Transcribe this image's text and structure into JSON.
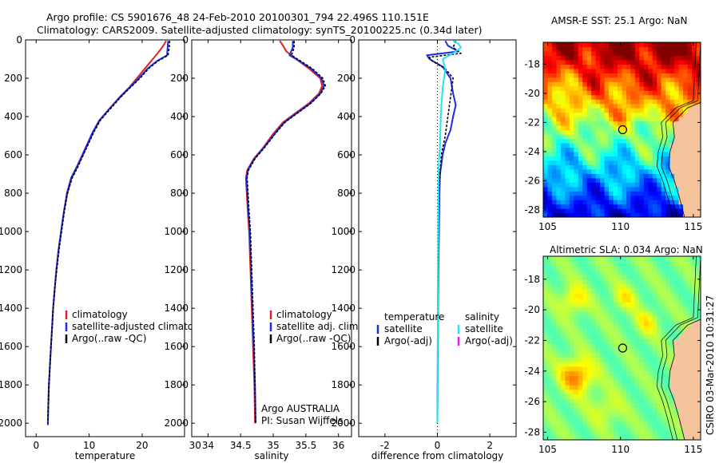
{
  "header": {
    "line1": "Argo profile: CS 5901676_48 24-Feb-2010 20100301_794 22.496S 110.151E",
    "line2": "Climatology: CARS2009. Satellite-adjusted climatology: synTS_20100225.nc (0.34d later)"
  },
  "stamp": "CSIRO 03-Mar-2010 10:31:27",
  "colors": {
    "climatology": "#e02020",
    "satellite": "#1a2ee0",
    "argo": "#000000",
    "salinity_satellite": "#20e8f0",
    "salinity_argo_adj": "#e020e0"
  },
  "chart_data": [
    {
      "type": "line",
      "panel": "temperature",
      "xlabel": "temperature",
      "xlim": [
        -2,
        28
      ],
      "xticks": [
        0,
        10,
        20,
        30
      ],
      "ylim": [
        2070,
        0
      ],
      "yticks": [
        0,
        200,
        400,
        600,
        800,
        1000,
        1200,
        1400,
        1600,
        1800,
        2000
      ],
      "legend": [
        "climatology",
        "satellite-adjusted climatology",
        "Argo(..raw -QC)"
      ],
      "series": [
        {
          "name": "climatology",
          "color": "#e02020",
          "points": [
            [
              24.5,
              5
            ],
            [
              24.0,
              30
            ],
            [
              23.2,
              60
            ],
            [
              22.0,
              100
            ],
            [
              20.5,
              150
            ],
            [
              19.0,
              200
            ],
            [
              17.5,
              250
            ],
            [
              15.7,
              300
            ],
            [
              13.8,
              360
            ],
            [
              12.0,
              420
            ],
            [
              10.8,
              480
            ],
            [
              9.8,
              540
            ],
            [
              8.8,
              600
            ],
            [
              7.8,
              660
            ],
            [
              6.7,
              720
            ],
            [
              5.9,
              800
            ],
            [
              5.2,
              900
            ],
            [
              4.7,
              1000
            ],
            [
              4.2,
              1100
            ],
            [
              3.8,
              1200
            ],
            [
              3.5,
              1300
            ],
            [
              3.2,
              1400
            ],
            [
              3.0,
              1500
            ],
            [
              2.8,
              1600
            ],
            [
              2.6,
              1700
            ],
            [
              2.4,
              1800
            ],
            [
              2.3,
              1900
            ],
            [
              2.2,
              2000
            ]
          ]
        },
        {
          "name": "satellite-adjusted climatology",
          "color": "#1a2ee0",
          "points": [
            [
              24.9,
              5
            ],
            [
              24.8,
              40
            ],
            [
              24.7,
              80
            ],
            [
              22.8,
              110
            ],
            [
              21.0,
              150
            ],
            [
              19.4,
              200
            ],
            [
              17.6,
              250
            ],
            [
              15.8,
              300
            ],
            [
              13.8,
              360
            ],
            [
              11.9,
              420
            ],
            [
              10.7,
              480
            ],
            [
              9.7,
              540
            ],
            [
              8.7,
              600
            ],
            [
              7.7,
              660
            ],
            [
              6.6,
              720
            ],
            [
              5.8,
              800
            ],
            [
              5.2,
              900
            ],
            [
              4.7,
              1000
            ],
            [
              4.2,
              1100
            ],
            [
              3.8,
              1200
            ],
            [
              3.5,
              1300
            ],
            [
              3.2,
              1400
            ],
            [
              3.0,
              1500
            ],
            [
              2.8,
              1600
            ],
            [
              2.6,
              1700
            ],
            [
              2.4,
              1800
            ],
            [
              2.3,
              1900
            ],
            [
              2.2,
              2010
            ]
          ]
        },
        {
          "name": "Argo(..raw -QC)",
          "color": "#000000",
          "dashed": true,
          "points": [
            [
              25.2,
              5
            ],
            [
              25.1,
              40
            ],
            [
              24.9,
              80
            ],
            [
              23.0,
              110
            ],
            [
              21.2,
              150
            ],
            [
              19.6,
              200
            ],
            [
              17.7,
              250
            ],
            [
              15.9,
              300
            ],
            [
              14.0,
              360
            ],
            [
              12.1,
              420
            ],
            [
              10.9,
              480
            ],
            [
              9.9,
              540
            ],
            [
              8.9,
              600
            ],
            [
              7.9,
              660
            ],
            [
              6.8,
              720
            ],
            [
              5.9,
              800
            ],
            [
              5.3,
              900
            ],
            [
              4.8,
              1000
            ],
            [
              4.3,
              1100
            ],
            [
              3.9,
              1200
            ],
            [
              3.5,
              1300
            ],
            [
              3.2,
              1400
            ],
            [
              3.0,
              1500
            ],
            [
              2.8,
              1600
            ],
            [
              2.6,
              1700
            ],
            [
              2.4,
              1800
            ],
            [
              2.3,
              1900
            ],
            [
              2.2,
              2000
            ]
          ]
        }
      ]
    },
    {
      "type": "line",
      "panel": "salinity",
      "xlabel": "salinity",
      "xlim": [
        33.75,
        36.2
      ],
      "xticks": [
        34,
        34.5,
        35,
        35.5,
        36
      ],
      "ylim": [
        2070,
        0
      ],
      "yticks": [
        0,
        200,
        400,
        600,
        800,
        1000,
        1200,
        1400,
        1600,
        1800,
        2000
      ],
      "legend": [
        "climatology",
        "satellite adj. clim.",
        "Argo(..raw -QC)"
      ],
      "annotation": [
        "Argo AUSTRALIA",
        "PI: Susan Wijffels"
      ],
      "series": [
        {
          "name": "climatology",
          "color": "#e02020",
          "points": [
            [
              35.1,
              5
            ],
            [
              35.15,
              30
            ],
            [
              35.2,
              60
            ],
            [
              35.35,
              100
            ],
            [
              35.55,
              150
            ],
            [
              35.72,
              200
            ],
            [
              35.75,
              240
            ],
            [
              35.7,
              280
            ],
            [
              35.55,
              330
            ],
            [
              35.35,
              380
            ],
            [
              35.15,
              430
            ],
            [
              35.0,
              490
            ],
            [
              34.85,
              560
            ],
            [
              34.7,
              620
            ],
            [
              34.6,
              680
            ],
            [
              34.58,
              720
            ],
            [
              34.59,
              780
            ],
            [
              34.61,
              900
            ],
            [
              34.63,
              1000
            ],
            [
              34.65,
              1200
            ],
            [
              34.67,
              1400
            ],
            [
              34.69,
              1600
            ],
            [
              34.71,
              1800
            ],
            [
              34.72,
              2000
            ]
          ]
        },
        {
          "name": "satellite adj. clim.",
          "color": "#1a2ee0",
          "points": [
            [
              35.3,
              5
            ],
            [
              35.3,
              40
            ],
            [
              35.25,
              80
            ],
            [
              35.4,
              110
            ],
            [
              35.58,
              150
            ],
            [
              35.74,
              200
            ],
            [
              35.78,
              240
            ],
            [
              35.72,
              280
            ],
            [
              35.57,
              330
            ],
            [
              35.37,
              380
            ],
            [
              35.17,
              430
            ],
            [
              35.02,
              490
            ],
            [
              34.86,
              560
            ],
            [
              34.71,
              620
            ],
            [
              34.61,
              680
            ],
            [
              34.59,
              720
            ],
            [
              34.6,
              780
            ],
            [
              34.62,
              900
            ],
            [
              34.64,
              1000
            ],
            [
              34.66,
              1200
            ],
            [
              34.68,
              1400
            ],
            [
              34.7,
              1600
            ],
            [
              34.72,
              1800
            ],
            [
              34.73,
              2000
            ]
          ]
        },
        {
          "name": "Argo(..raw -QC)",
          "color": "#000000",
          "dashed": true,
          "points": [
            [
              35.32,
              5
            ],
            [
              35.32,
              40
            ],
            [
              35.28,
              80
            ],
            [
              35.42,
              110
            ],
            [
              35.6,
              150
            ],
            [
              35.76,
              200
            ],
            [
              35.8,
              240
            ],
            [
              35.73,
              280
            ],
            [
              35.58,
              330
            ],
            [
              35.38,
              380
            ],
            [
              35.18,
              430
            ],
            [
              35.03,
              490
            ],
            [
              34.87,
              560
            ],
            [
              34.72,
              620
            ],
            [
              34.62,
              680
            ],
            [
              34.6,
              720
            ],
            [
              34.61,
              780
            ],
            [
              34.63,
              900
            ],
            [
              34.65,
              1000
            ],
            [
              34.67,
              1200
            ],
            [
              34.69,
              1400
            ],
            [
              34.71,
              1600
            ],
            [
              34.72,
              1800
            ],
            [
              34.73,
              2000
            ]
          ]
        }
      ]
    },
    {
      "type": "line",
      "panel": "difference",
      "xlabel": "difference from climatology",
      "xlim": [
        -3.0,
        3.0
      ],
      "xticks": [
        -2,
        0,
        2
      ],
      "ylim": [
        2070,
        0
      ],
      "yticks": [
        0,
        200,
        400,
        600,
        800,
        1000,
        1200,
        1400,
        1600,
        1800,
        2000
      ],
      "legend_left_header": "temperature",
      "legend_left": [
        "satellite",
        "Argo(-adj)"
      ],
      "legend_right_header": "salinity",
      "legend_right": [
        "satellite",
        "Argo(-adj)"
      ],
      "series": [
        {
          "name": "temperature satellite",
          "color": "#1a2ee0",
          "points": [
            [
              0.3,
              5
            ],
            [
              0.4,
              30
            ],
            [
              0.8,
              60
            ],
            [
              -0.4,
              80
            ],
            [
              -0.3,
              100
            ],
            [
              0.2,
              140
            ],
            [
              0.5,
              200
            ],
            [
              0.6,
              280
            ],
            [
              0.7,
              340
            ],
            [
              0.6,
              400
            ],
            [
              0.5,
              470
            ],
            [
              0.3,
              540
            ],
            [
              0.2,
              600
            ],
            [
              0.1,
              700
            ],
            [
              0.08,
              800
            ],
            [
              0.06,
              1000
            ],
            [
              0.04,
              1200
            ],
            [
              0.03,
              1400
            ],
            [
              0.02,
              1600
            ],
            [
              0.01,
              1800
            ],
            [
              0.0,
              2000
            ]
          ]
        },
        {
          "name": "temperature Argo(-adj)",
          "color": "#000000",
          "dashed": true,
          "points": [
            [
              0.7,
              5
            ],
            [
              0.6,
              40
            ],
            [
              0.9,
              70
            ],
            [
              -0.3,
              90
            ],
            [
              -0.2,
              110
            ],
            [
              0.3,
              150
            ],
            [
              0.6,
              200
            ],
            [
              0.5,
              300
            ],
            [
              0.4,
              400
            ],
            [
              0.3,
              500
            ],
            [
              0.15,
              600
            ],
            [
              0.1,
              700
            ],
            [
              0.05,
              800
            ],
            [
              0.03,
              1000
            ],
            [
              0.02,
              1200
            ],
            [
              0.01,
              1500
            ],
            [
              0.0,
              2000
            ]
          ]
        },
        {
          "name": "salinity satellite",
          "color": "#20e8f0",
          "points": [
            [
              0.6,
              5
            ],
            [
              0.8,
              20
            ],
            [
              0.9,
              40
            ],
            [
              0.6,
              70
            ],
            [
              0.2,
              100
            ],
            [
              0.3,
              150
            ],
            [
              0.2,
              250
            ],
            [
              0.15,
              350
            ],
            [
              0.12,
              450
            ],
            [
              0.1,
              550
            ],
            [
              0.05,
              650
            ],
            [
              0.04,
              800
            ],
            [
              0.03,
              1000
            ],
            [
              0.02,
              1200
            ],
            [
              0.02,
              1400
            ],
            [
              0.01,
              1600
            ],
            [
              0.01,
              1800
            ],
            [
              0.0,
              2000
            ]
          ]
        }
      ]
    }
  ],
  "maps": {
    "sst": {
      "title": "AMSR-E SST: 25.1 Argo: NaN",
      "xlim": [
        104.7,
        115.5
      ],
      "xticks": [
        105,
        110,
        115
      ],
      "ylim": [
        -28.5,
        -16.5
      ],
      "yticks": [
        -18,
        -20,
        -22,
        -24,
        -26,
        -28
      ],
      "marker": [
        110.15,
        -22.5
      ]
    },
    "sla": {
      "title": "Altimetric SLA: 0.034 Argo: NaN",
      "xlim": [
        104.7,
        115.5
      ],
      "xticks": [
        105,
        110,
        115
      ],
      "ylim": [
        -28.5,
        -16.5
      ],
      "yticks": [
        -18,
        -20,
        -22,
        -24,
        -26,
        -28
      ],
      "marker": [
        110.15,
        -22.5
      ]
    }
  }
}
